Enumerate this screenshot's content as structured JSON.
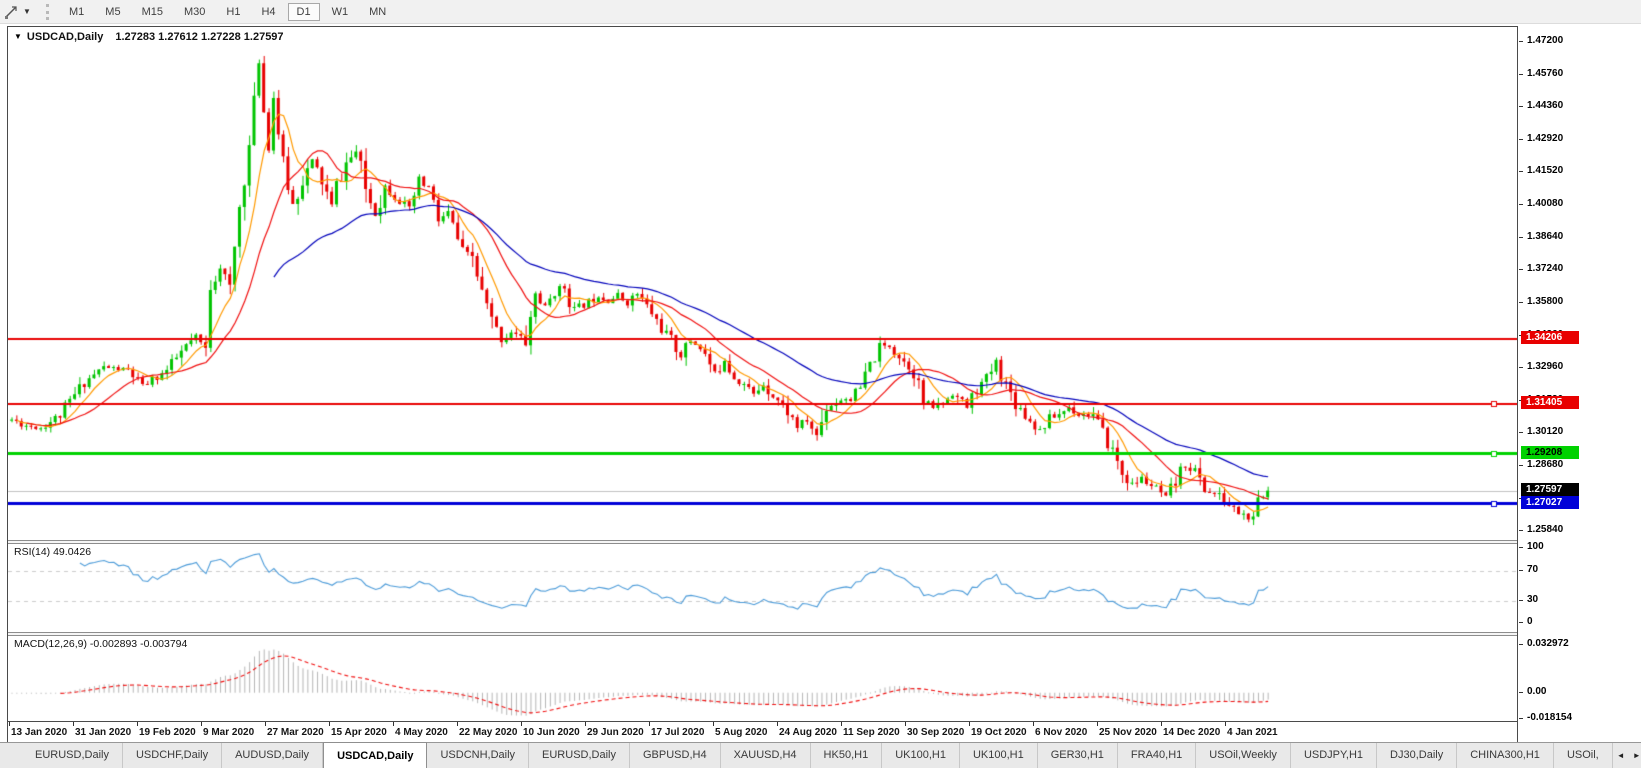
{
  "toolbar": {
    "timeframes": [
      "M1",
      "M5",
      "M15",
      "M30",
      "H1",
      "H4",
      "D1",
      "W1",
      "MN"
    ],
    "active_timeframe": "D1",
    "tool_icon": "crosshair-tool",
    "dropdown_glyph": "▼"
  },
  "chart": {
    "symbol_label": "USDCAD,Daily",
    "ohlc": "1.27283 1.27612 1.27228 1.27597",
    "menu_glyph": "▼",
    "y_ticks": [
      "1.47200",
      "1.45760",
      "1.44360",
      "1.42920",
      "1.41520",
      "1.40080",
      "1.38640",
      "1.37240",
      "1.35800",
      "1.34360",
      "1.32960",
      "1.31520",
      "1.30120",
      "1.28680",
      "1.27240",
      "1.25840"
    ],
    "h_lines": [
      {
        "value": "1.34206",
        "price": 1.34206,
        "color": "#e80000",
        "text_color": "#ffffff",
        "line_width": 2,
        "handle": false
      },
      {
        "value": "1.31405",
        "price": 1.31405,
        "color": "#e80000",
        "text_color": "#ffffff",
        "line_width": 2,
        "handle": true
      },
      {
        "value": "1.29208",
        "price": 1.29208,
        "color": "#00d200",
        "text_color": "#000000",
        "line_width": 3,
        "handle": true
      },
      {
        "value": "1.27027",
        "price": 1.27027,
        "color": "#0000d8",
        "text_color": "#ffffff",
        "line_width": 3,
        "handle": true
      }
    ],
    "current_price": {
      "value": "1.27597",
      "price": 1.27597,
      "bg": "#000000",
      "text_color": "#ffffff"
    },
    "chart_data": {
      "type": "candlestick",
      "symbol": "USDCAD",
      "timeframe": "Daily",
      "visible_price_range": [
        1.2584,
        1.472
      ],
      "grid": false,
      "count": 260,
      "x_labels": [
        "13 Jan 2020",
        "31 Jan 2020",
        "19 Feb 2020",
        "9 Mar 2020",
        "27 Mar 2020",
        "15 Apr 2020",
        "4 May 2020",
        "22 May 2020",
        "10 Jun 2020",
        "29 Jun 2020",
        "17 Jul 2020",
        "5 Aug 2020",
        "24 Aug 2020",
        "11 Sep 2020",
        "30 Sep 2020",
        "19 Oct 2020",
        "6 Nov 2020",
        "25 Nov 2020",
        "14 Dec 2020",
        "4 Jan 2021"
      ],
      "up_color": "#00c400",
      "down_color": "#e80000",
      "ma": [
        {
          "name": "fast-ma",
          "type": "sma",
          "period": 7,
          "draw_from": 1,
          "color": "#ff9a00"
        },
        {
          "name": "mid-ma",
          "type": "sma",
          "period": 16,
          "draw_from": 3,
          "color": "#f01010"
        },
        {
          "name": "slow-ma",
          "type": "ema",
          "period": 40,
          "draw_from": 54,
          "color": "#0000bb"
        }
      ],
      "close_anchors": [
        [
          0,
          1.307
        ],
        [
          3,
          1.3045
        ],
        [
          6,
          1.3035
        ],
        [
          10,
          1.309
        ],
        [
          15,
          1.3235
        ],
        [
          19,
          1.33
        ],
        [
          24,
          1.3285
        ],
        [
          27,
          1.3215
        ],
        [
          28,
          1.323
        ],
        [
          32,
          1.3285
        ],
        [
          36,
          1.339
        ],
        [
          38,
          1.343
        ],
        [
          40,
          1.337
        ],
        [
          41,
          1.366
        ],
        [
          43,
          1.374
        ],
        [
          45,
          1.363
        ],
        [
          47,
          1.4
        ],
        [
          49,
          1.426
        ],
        [
          51,
          1.464
        ],
        [
          52,
          1.442
        ],
        [
          53,
          1.427
        ],
        [
          54,
          1.448
        ],
        [
          56,
          1.418
        ],
        [
          58,
          1.401
        ],
        [
          60,
          1.412
        ],
        [
          62,
          1.42
        ],
        [
          64,
          1.411
        ],
        [
          66,
          1.4
        ],
        [
          67,
          1.409
        ],
        [
          69,
          1.419
        ],
        [
          71,
          1.424
        ],
        [
          73,
          1.408
        ],
        [
          75,
          1.397
        ],
        [
          77,
          1.409
        ],
        [
          80,
          1.403
        ],
        [
          82,
          1.398
        ],
        [
          84,
          1.411
        ],
        [
          86,
          1.408
        ],
        [
          88,
          1.394
        ],
        [
          90,
          1.397
        ],
        [
          93,
          1.38
        ],
        [
          95,
          1.378
        ],
        [
          97,
          1.362
        ],
        [
          99,
          1.35
        ],
        [
          101,
          1.342
        ],
        [
          103,
          1.3455
        ],
        [
          106,
          1.341
        ],
        [
          108,
          1.362
        ],
        [
          110,
          1.356
        ],
        [
          112,
          1.363
        ],
        [
          114,
          1.365
        ],
        [
          116,
          1.355
        ],
        [
          119,
          1.3585
        ],
        [
          121,
          1.3615
        ],
        [
          123,
          1.359
        ],
        [
          125,
          1.3615
        ],
        [
          127,
          1.358
        ],
        [
          129,
          1.362
        ],
        [
          132,
          1.3535
        ],
        [
          134,
          1.347
        ],
        [
          136,
          1.3415
        ],
        [
          138,
          1.335
        ],
        [
          140,
          1.3415
        ],
        [
          142,
          1.339
        ],
        [
          145,
          1.327
        ],
        [
          147,
          1.3335
        ],
        [
          149,
          1.326
        ],
        [
          151,
          1.3225
        ],
        [
          153,
          1.318
        ],
        [
          155,
          1.3225
        ],
        [
          158,
          1.3155
        ],
        [
          160,
          1.3105
        ],
        [
          162,
          1.304
        ],
        [
          164,
          1.3065
        ],
        [
          166,
          1.3
        ],
        [
          168,
          1.3125
        ],
        [
          171,
          1.316
        ],
        [
          173,
          1.3165
        ],
        [
          175,
          1.3205
        ],
        [
          177,
          1.3305
        ],
        [
          179,
          1.3385
        ],
        [
          181,
          1.3395
        ],
        [
          184,
          1.3325
        ],
        [
          186,
          1.3285
        ],
        [
          188,
          1.3145
        ],
        [
          190,
          1.3125
        ],
        [
          192,
          1.3145
        ],
        [
          194,
          1.3185
        ],
        [
          197,
          1.3125
        ],
        [
          199,
          1.3205
        ],
        [
          201,
          1.3245
        ],
        [
          203,
          1.3325
        ],
        [
          205,
          1.3225
        ],
        [
          207,
          1.3145
        ],
        [
          210,
          1.3065
        ],
        [
          212,
          1.3025
        ],
        [
          214,
          1.3075
        ],
        [
          216,
          1.3095
        ],
        [
          218,
          1.3125
        ],
        [
          220,
          1.3095
        ],
        [
          223,
          1.309
        ],
        [
          225,
          1.3005
        ],
        [
          227,
          1.2935
        ],
        [
          229,
          1.2835
        ],
        [
          231,
          1.2785
        ],
        [
          233,
          1.2815
        ],
        [
          236,
          1.2765
        ],
        [
          238,
          1.2725
        ],
        [
          240,
          1.2795
        ],
        [
          242,
          1.2875
        ],
        [
          244,
          1.2845
        ],
        [
          246,
          1.2765
        ],
        [
          249,
          1.2735
        ],
        [
          251,
          1.2695
        ],
        [
          253,
          1.2665
        ],
        [
          255,
          1.264
        ],
        [
          256,
          1.2625
        ],
        [
          257,
          1.27
        ],
        [
          258,
          1.273
        ],
        [
          259,
          1.276
        ]
      ]
    }
  },
  "rsi": {
    "label": "RSI(14) 49.0426",
    "period": 14,
    "current_value": "49.0426",
    "ticks": [
      "100",
      "70",
      "30",
      "0"
    ],
    "levels": [
      70,
      30
    ],
    "range": [
      0,
      100
    ],
    "color": "#4a9ad8"
  },
  "macd": {
    "label": "MACD(12,26,9) -0.002893 -0.003794",
    "params": "12,26,9",
    "values": "-0.002893 -0.003794",
    "ticks": [
      "0.032972",
      "0.00",
      "-0.018154"
    ],
    "range": [
      -0.018154,
      0.032972
    ],
    "hist_color": "#b6b6b6",
    "signal_color": "#f01010"
  },
  "tabs": {
    "items": [
      {
        "label": "EURUSD,Daily",
        "active": false
      },
      {
        "label": "USDCHF,Daily",
        "active": false
      },
      {
        "label": "AUDUSD,Daily",
        "active": false
      },
      {
        "label": "USDCAD,Daily",
        "active": true
      },
      {
        "label": "USDCNH,Daily",
        "active": false
      },
      {
        "label": "EURUSD,Daily",
        "active": false
      },
      {
        "label": "GBPUSD,H4",
        "active": false
      },
      {
        "label": "XAUUSD,H4",
        "active": false
      },
      {
        "label": "HK50,H1",
        "active": false
      },
      {
        "label": "UK100,H1",
        "active": false
      },
      {
        "label": "UK100,H1",
        "active": false
      },
      {
        "label": "GER30,H1",
        "active": false
      },
      {
        "label": "FRA40,H1",
        "active": false
      },
      {
        "label": "USOil,Weekly",
        "active": false
      },
      {
        "label": "USDJPY,H1",
        "active": false
      },
      {
        "label": "DJ30,Daily",
        "active": false
      },
      {
        "label": "CHINA300,H1",
        "active": false
      },
      {
        "label": "USOil,",
        "active": false
      }
    ],
    "left_arrow": "◄",
    "right_arrow": "►"
  }
}
